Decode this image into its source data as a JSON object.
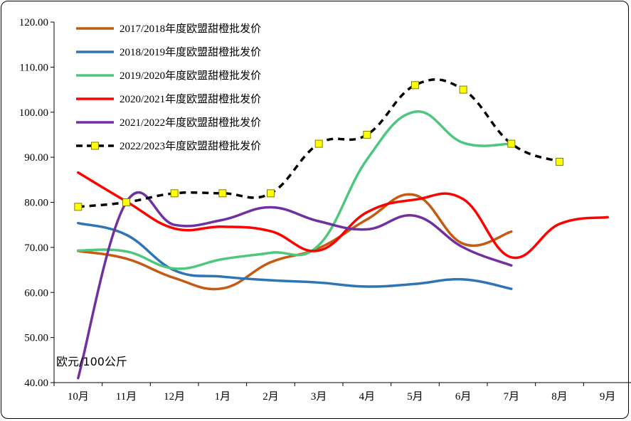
{
  "chart_data": {
    "type": "line",
    "title": "",
    "xlabel": "",
    "ylabel": "",
    "unit_label": "欧元/100公斤",
    "categories": [
      "10月",
      "11月",
      "12月",
      "1月",
      "2月",
      "3月",
      "4月",
      "5月",
      "6月",
      "7月",
      "8月",
      "9月"
    ],
    "ylim": [
      40,
      120
    ],
    "yticks": [
      "40.00",
      "50.00",
      "60.00",
      "70.00",
      "80.00",
      "90.00",
      "100.00",
      "110.00",
      "120.00"
    ],
    "grid": false,
    "legend_position": "top-left",
    "series": [
      {
        "name": "2017/2018年度欧盟甜橙批发价",
        "color": "#c55a11",
        "dash": false,
        "markers": false,
        "values": [
          69.2,
          67.5,
          63.2,
          60.9,
          66.7,
          69.8,
          76.2,
          81.6,
          70.8,
          73.5,
          null,
          null
        ]
      },
      {
        "name": "2018/2019年度欧盟甜橙批发价",
        "color": "#2e75b6",
        "dash": false,
        "markers": false,
        "values": [
          75.4,
          72.8,
          64.9,
          63.5,
          62.7,
          62.2,
          61.3,
          61.9,
          62.9,
          60.8,
          null,
          null
        ]
      },
      {
        "name": "2019/2020年度欧盟甜橙批发价",
        "color": "#4dc77e",
        "dash": false,
        "markers": false,
        "values": [
          69.3,
          69.1,
          65.3,
          67.4,
          68.8,
          70.5,
          89.5,
          100.1,
          93.2,
          93.0,
          null,
          null
        ]
      },
      {
        "name": "2020/2021年度欧盟甜橙批发价",
        "color": "#ff0000",
        "dash": false,
        "markers": false,
        "values": [
          86.6,
          80.2,
          74.2,
          74.6,
          73.6,
          69.3,
          77.8,
          80.6,
          80.7,
          67.8,
          75.2,
          76.7
        ]
      },
      {
        "name": "2021/2022年度欧盟甜橙批发价",
        "color": "#7030a0",
        "dash": false,
        "markers": false,
        "values": [
          41.0,
          80.0,
          75.0,
          76.1,
          78.9,
          75.8,
          74.0,
          77.0,
          70.0,
          66.0,
          null,
          null
        ]
      },
      {
        "name": "2022/2023年度欧盟甜橙批发价",
        "color": "#000000",
        "dash": true,
        "markers": true,
        "values": [
          79.0,
          80.0,
          82.0,
          82.0,
          82.0,
          93.0,
          95.0,
          106.0,
          105.0,
          93.0,
          89.0,
          null
        ]
      }
    ]
  }
}
